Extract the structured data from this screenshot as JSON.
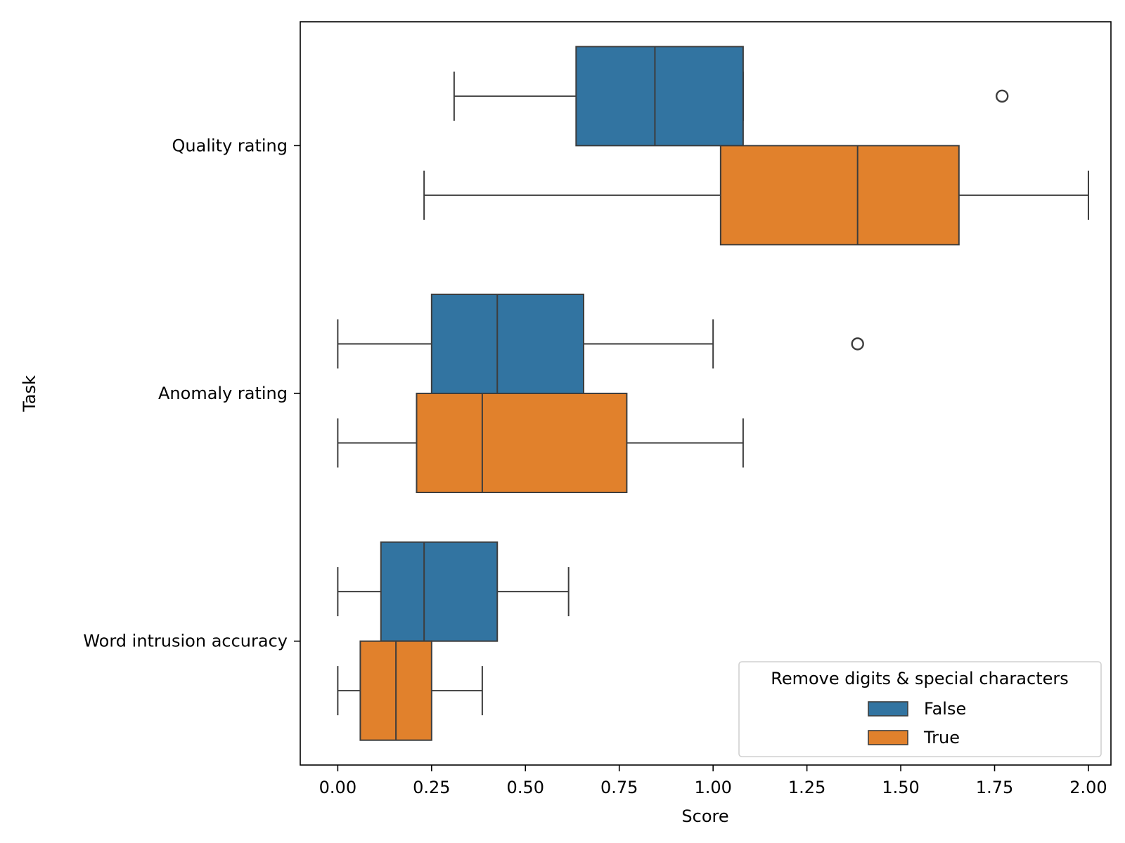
{
  "chart_data": {
    "type": "box",
    "orientation": "horizontal",
    "xlabel": "Score",
    "ylabel": "Task",
    "xlim": [
      -0.1,
      2.06
    ],
    "xticks": [
      0.0,
      0.25,
      0.5,
      0.75,
      1.0,
      1.25,
      1.5,
      1.75,
      2.0
    ],
    "xtick_labels": [
      "0.00",
      "0.25",
      "0.50",
      "0.75",
      "1.00",
      "1.25",
      "1.50",
      "1.75",
      "2.00"
    ],
    "categories": [
      "Quality rating",
      "Anomaly rating",
      "Word intrusion accuracy"
    ],
    "grid": false,
    "legend": {
      "title": "Remove digits & special characters",
      "position": "lower-right",
      "entries": [
        {
          "label": "False",
          "color": "#3274a1"
        },
        {
          "label": "True",
          "color": "#e1812c"
        }
      ]
    },
    "series": [
      {
        "name": "False",
        "color": "#3274a1",
        "boxes": [
          {
            "category": "Quality rating",
            "whisker_low": 0.31,
            "q1": 0.635,
            "median": 0.845,
            "q3": 1.08,
            "whisker_high": 1.08,
            "outliers": [
              1.77
            ]
          },
          {
            "category": "Anomaly rating",
            "whisker_low": 0.0,
            "q1": 0.25,
            "median": 0.425,
            "q3": 0.655,
            "whisker_high": 1.0,
            "outliers": [
              1.385
            ]
          },
          {
            "category": "Word intrusion accuracy",
            "whisker_low": 0.0,
            "q1": 0.115,
            "median": 0.23,
            "q3": 0.425,
            "whisker_high": 0.615,
            "outliers": []
          }
        ]
      },
      {
        "name": "True",
        "color": "#e1812c",
        "boxes": [
          {
            "category": "Quality rating",
            "whisker_low": 0.23,
            "q1": 1.02,
            "median": 1.385,
            "q3": 1.655,
            "whisker_high": 2.0,
            "outliers": []
          },
          {
            "category": "Anomaly rating",
            "whisker_low": 0.0,
            "q1": 0.21,
            "median": 0.385,
            "q3": 0.77,
            "whisker_high": 1.08,
            "outliers": []
          },
          {
            "category": "Word intrusion accuracy",
            "whisker_low": 0.0,
            "q1": 0.06,
            "median": 0.155,
            "q3": 0.25,
            "whisker_high": 0.385,
            "outliers": []
          }
        ]
      }
    ]
  },
  "colors": {
    "line": "#3d3d3d",
    "axes": "#000000"
  }
}
